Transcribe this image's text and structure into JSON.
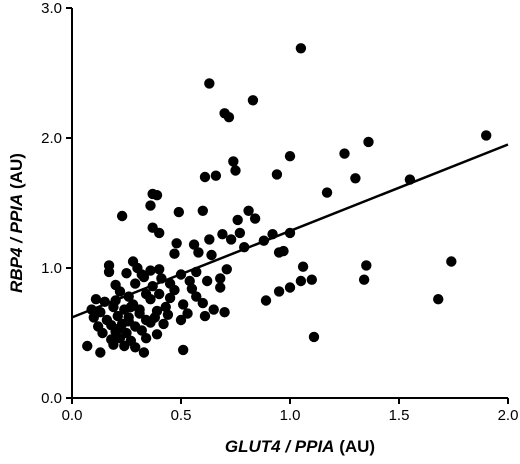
{
  "chart_data": {
    "type": "scatter",
    "xlabel": "GLUT4 / PPIA (AU)",
    "xlabel_parts": {
      "italic": "GLUT4 / PPIA",
      "unit": "(AU)"
    },
    "ylabel": "RBP4 / PPIA (AU)",
    "ylabel_parts": {
      "italic": "RBP4 / PPIA",
      "unit": "(AU)"
    },
    "xlim": [
      0.0,
      2.0
    ],
    "ylim": [
      0.0,
      3.0
    ],
    "xticks": [
      "0.0",
      "0.5",
      "1.0",
      "1.5",
      "2.0"
    ],
    "yticks": [
      "0.0",
      "1.0",
      "2.0",
      "3.0"
    ],
    "grid": false,
    "trendline": {
      "x": [
        0.0,
        2.0
      ],
      "y": [
        0.62,
        1.95
      ]
    },
    "series": [
      {
        "points": [
          [
            1.05,
            2.69
          ],
          [
            0.63,
            2.42
          ],
          [
            0.83,
            2.29
          ],
          [
            0.7,
            2.19
          ],
          [
            0.72,
            2.16
          ],
          [
            1.9,
            2.02
          ],
          [
            1.36,
            1.97
          ],
          [
            1.25,
            1.88
          ],
          [
            1.0,
            1.86
          ],
          [
            0.74,
            1.82
          ],
          [
            0.94,
            1.72
          ],
          [
            1.3,
            1.69
          ],
          [
            0.61,
            1.7
          ],
          [
            0.66,
            1.71
          ],
          [
            0.75,
            1.75
          ],
          [
            1.55,
            1.68
          ],
          [
            1.17,
            1.58
          ],
          [
            0.37,
            1.57
          ],
          [
            0.39,
            1.56
          ],
          [
            0.36,
            1.48
          ],
          [
            0.6,
            1.44
          ],
          [
            0.49,
            1.43
          ],
          [
            0.81,
            1.44
          ],
          [
            0.76,
            1.37
          ],
          [
            0.84,
            1.38
          ],
          [
            0.23,
            1.4
          ],
          [
            0.37,
            1.31
          ],
          [
            0.4,
            1.27
          ],
          [
            0.69,
            1.26
          ],
          [
            0.77,
            1.27
          ],
          [
            0.92,
            1.26
          ],
          [
            1.0,
            1.27
          ],
          [
            0.48,
            1.19
          ],
          [
            0.63,
            1.22
          ],
          [
            0.73,
            1.22
          ],
          [
            0.56,
            1.18
          ],
          [
            0.88,
            1.21
          ],
          [
            0.79,
            1.16
          ],
          [
            0.47,
            1.11
          ],
          [
            0.58,
            1.12
          ],
          [
            0.95,
            1.12
          ],
          [
            0.97,
            1.13
          ],
          [
            0.64,
            1.1
          ],
          [
            0.17,
            1.02
          ],
          [
            0.3,
            1.0
          ],
          [
            0.36,
            0.98
          ],
          [
            0.4,
            0.99
          ],
          [
            0.28,
            1.05
          ],
          [
            0.32,
            0.95
          ],
          [
            0.5,
            0.95
          ],
          [
            0.57,
            0.97
          ],
          [
            0.71,
            0.99
          ],
          [
            1.06,
            1.01
          ],
          [
            1.35,
            1.02
          ],
          [
            1.74,
            1.05
          ],
          [
            0.17,
            0.97
          ],
          [
            0.25,
            0.96
          ],
          [
            0.33,
            0.93
          ],
          [
            0.41,
            0.92
          ],
          [
            0.54,
            0.9
          ],
          [
            0.62,
            0.9
          ],
          [
            0.68,
            0.92
          ],
          [
            1.05,
            0.9
          ],
          [
            1.1,
            0.91
          ],
          [
            1.34,
            0.91
          ],
          [
            0.2,
            0.87
          ],
          [
            0.29,
            0.88
          ],
          [
            0.37,
            0.86
          ],
          [
            0.45,
            0.88
          ],
          [
            0.55,
            0.84
          ],
          [
            0.68,
            0.85
          ],
          [
            0.22,
            0.82
          ],
          [
            0.26,
            0.78
          ],
          [
            0.34,
            0.8
          ],
          [
            0.4,
            0.8
          ],
          [
            0.47,
            0.83
          ],
          [
            0.57,
            0.78
          ],
          [
            0.95,
            0.82
          ],
          [
            1.0,
            0.85
          ],
          [
            0.11,
            0.76
          ],
          [
            0.15,
            0.74
          ],
          [
            0.2,
            0.75
          ],
          [
            0.28,
            0.72
          ],
          [
            0.36,
            0.76
          ],
          [
            0.43,
            0.7
          ],
          [
            0.51,
            0.72
          ],
          [
            0.6,
            0.73
          ],
          [
            0.65,
            0.68
          ],
          [
            0.89,
            0.75
          ],
          [
            1.68,
            0.76
          ],
          [
            0.09,
            0.68
          ],
          [
            0.13,
            0.66
          ],
          [
            0.19,
            0.7
          ],
          [
            0.24,
            0.68
          ],
          [
            0.31,
            0.65
          ],
          [
            0.39,
            0.67
          ],
          [
            0.44,
            0.64
          ],
          [
            0.53,
            0.65
          ],
          [
            0.61,
            0.63
          ],
          [
            0.7,
            0.66
          ],
          [
            0.1,
            0.62
          ],
          [
            0.16,
            0.6
          ],
          [
            0.21,
            0.63
          ],
          [
            0.26,
            0.59
          ],
          [
            0.34,
            0.6
          ],
          [
            0.12,
            0.55
          ],
          [
            0.18,
            0.56
          ],
          [
            0.23,
            0.57
          ],
          [
            0.29,
            0.55
          ],
          [
            0.36,
            0.58
          ],
          [
            0.42,
            0.57
          ],
          [
            0.14,
            0.5
          ],
          [
            0.2,
            0.51
          ],
          [
            0.25,
            0.5
          ],
          [
            0.32,
            0.52
          ],
          [
            0.39,
            0.49
          ],
          [
            0.18,
            0.45
          ],
          [
            0.22,
            0.46
          ],
          [
            0.27,
            0.44
          ],
          [
            0.34,
            0.46
          ],
          [
            0.07,
            0.4
          ],
          [
            0.19,
            0.41
          ],
          [
            0.24,
            0.4
          ],
          [
            0.29,
            0.39
          ],
          [
            0.33,
            0.35
          ],
          [
            0.13,
            0.35
          ],
          [
            0.51,
            0.37
          ],
          [
            1.11,
            0.47
          ],
          [
            0.31,
            0.68
          ],
          [
            0.26,
            0.62
          ],
          [
            0.21,
            0.53
          ],
          [
            0.27,
            0.7
          ],
          [
            0.38,
            0.62
          ],
          [
            0.45,
            0.77
          ],
          [
            0.5,
            0.6
          ]
        ]
      }
    ]
  }
}
